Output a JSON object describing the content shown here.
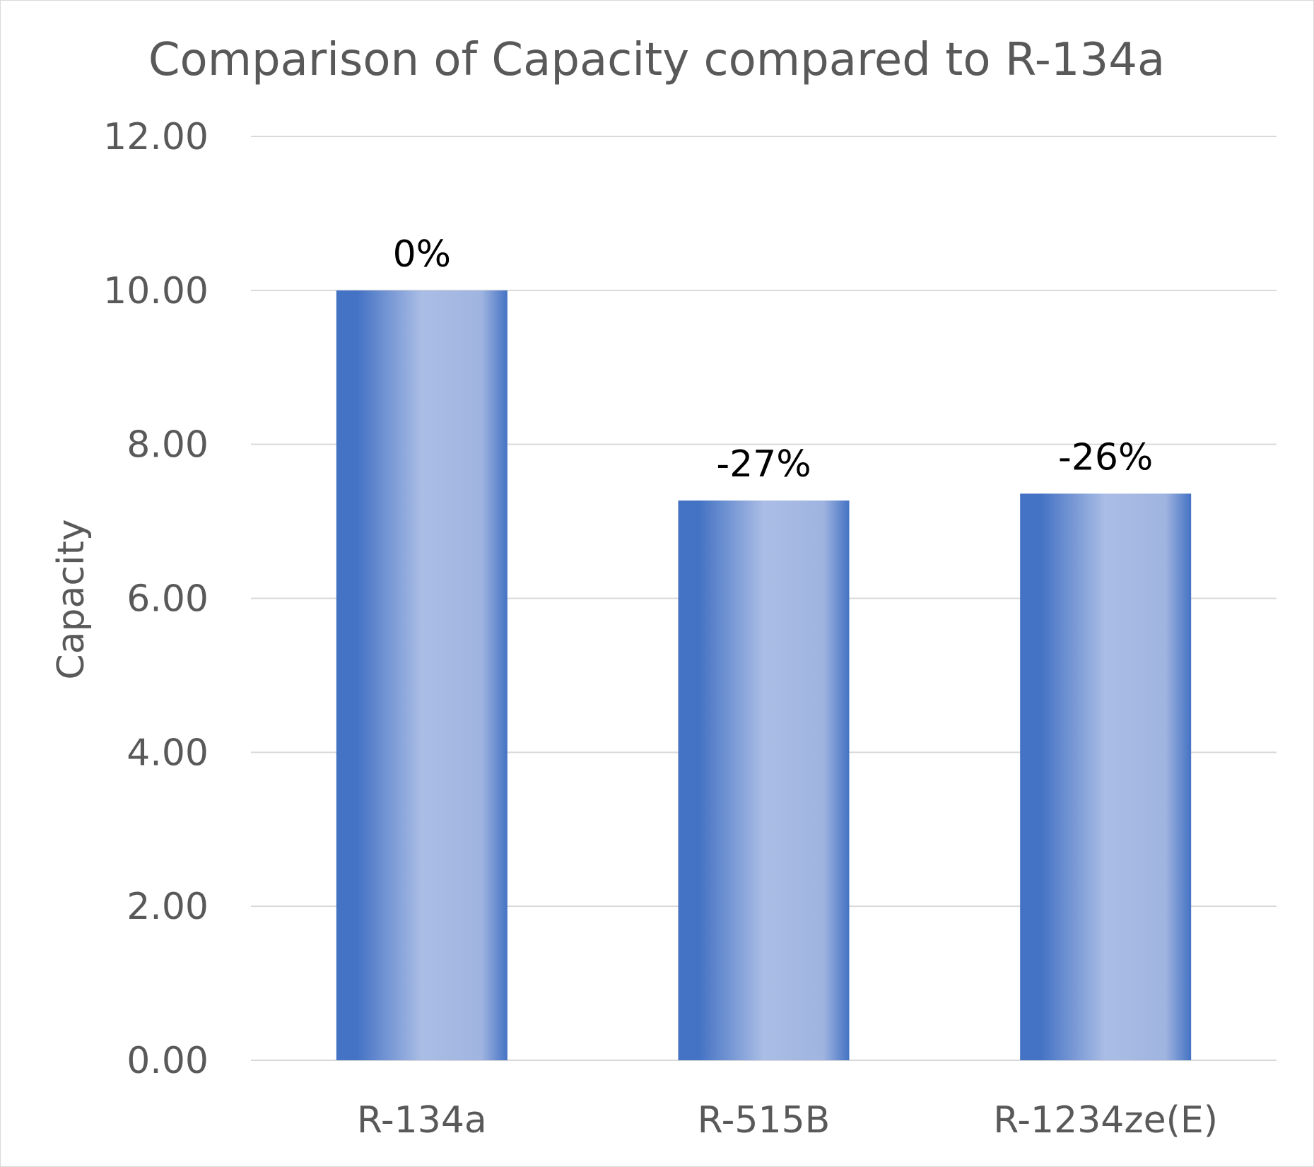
{
  "chart_data": {
    "type": "bar",
    "title": "Comparison of Capacity compared to R-134a",
    "xlabel": "",
    "ylabel": "Capacity",
    "categories": [
      "R-134a",
      "R-515B",
      "R-1234ze(E)"
    ],
    "values": [
      10.0,
      7.27,
      7.36
    ],
    "data_labels": [
      "0%",
      "-27%",
      "-26%"
    ],
    "ylim": [
      0,
      12
    ],
    "yticks": [
      0,
      2,
      4,
      6,
      8,
      10,
      12
    ],
    "ytick_labels": [
      "0.00",
      "2.00",
      "4.00",
      "6.00",
      "8.00",
      "10.00",
      "12.00"
    ],
    "grid": true,
    "legend": "none",
    "colors": {
      "bar_edge": "#4472c4",
      "bar_center": "#aabde5",
      "grid": "#d9d9d9",
      "text": "#595959",
      "data_label": "#000000"
    }
  }
}
